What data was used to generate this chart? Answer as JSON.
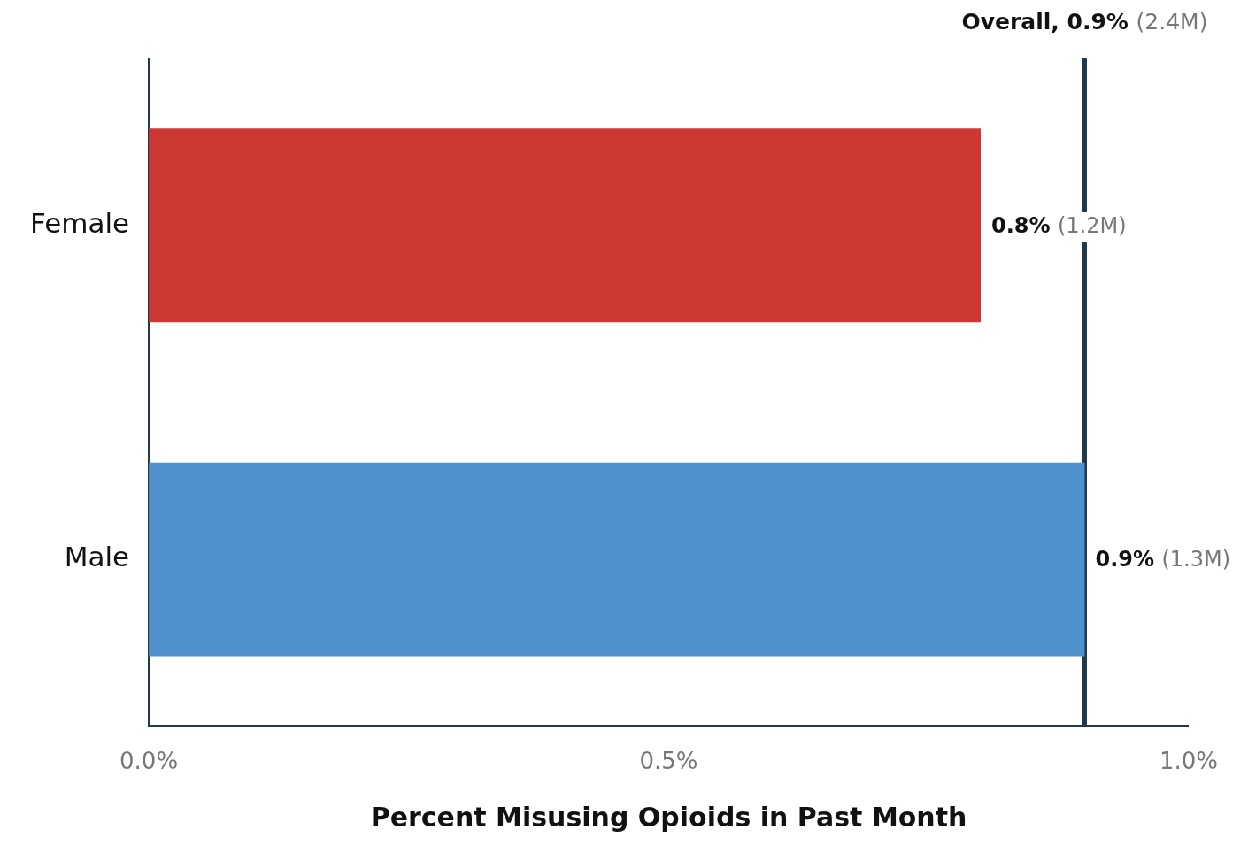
{
  "chart_data": {
    "type": "bar",
    "orientation": "horizontal",
    "xlabel": "Percent Misusing Opioids in Past Month",
    "categories": [
      "Female",
      "Male"
    ],
    "values": [
      0.8,
      0.9
    ],
    "colors": [
      "#cc3833",
      "#4f91cd"
    ],
    "value_labels": [
      "0.8% (1.2M)",
      "0.9% (1.3M)"
    ],
    "xlim": [
      0,
      1
    ],
    "xticks": [
      {
        "value": 0,
        "label": "0.0%"
      },
      {
        "value": 0.5,
        "label": "0.5%"
      },
      {
        "value": 1,
        "label": "1.0%"
      }
    ],
    "ref_lines": [
      {
        "axis": "x",
        "value": 0.9,
        "label": "Overall, 0.9% (2.4M)",
        "color": "#1f3a4d"
      }
    ],
    "grid": false,
    "legend": false
  }
}
